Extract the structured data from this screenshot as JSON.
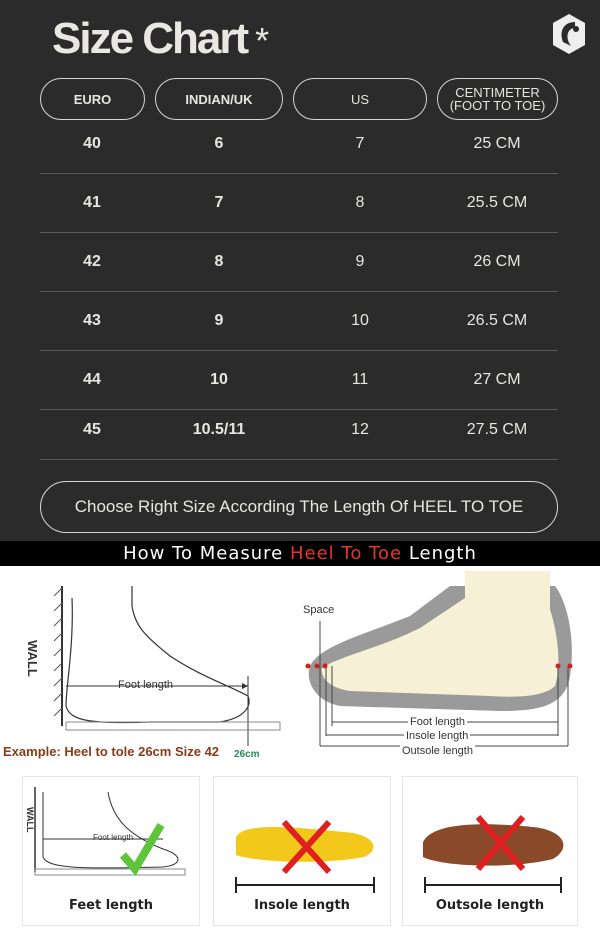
{
  "header": {
    "title": "Size Chart",
    "asterisk": "*",
    "logo_icon": "brand-logo-icon"
  },
  "columns": [
    "EURO",
    "INDIAN/UK",
    "US",
    "CENTIMETER\n(FOOT TO TOE)"
  ],
  "columns_split": {
    "cm_line1": "CENTIMETER",
    "cm_line2": "(FOOT TO TOE)"
  },
  "rows": [
    [
      "40",
      "6",
      "7",
      "25 CM"
    ],
    [
      "41",
      "7",
      "8",
      "25.5 CM"
    ],
    [
      "42",
      "8",
      "9",
      "26 CM"
    ],
    [
      "43",
      "9",
      "10",
      "26.5 CM"
    ],
    [
      "44",
      "10",
      "11",
      "27 CM"
    ],
    [
      "45",
      "10.5/11",
      "12",
      "27.5 CM"
    ]
  ],
  "cta": "Choose Right Size According The Length Of HEEL TO TOE",
  "banner": {
    "part1": "How To Measure ",
    "highlight": "Heel To Toe",
    "part2": " Length",
    "highlight_color": "#e8352b"
  },
  "diagram": {
    "wall": "WALL",
    "foot_length": "Foot length",
    "example": "Example: Heel to tole 26cm Size 42",
    "measure": "26cm",
    "space": "Space",
    "insole_length": "Insole length",
    "outsole_length": "Outsole length"
  },
  "cards": [
    {
      "label": "Feet length",
      "mark": "check"
    },
    {
      "label": "Insole length",
      "mark": "cross"
    },
    {
      "label": "Outsole length",
      "mark": "cross"
    }
  ],
  "colors": {
    "background": "#2b2b2b",
    "text": "#e8e6e1",
    "check": "#5cc53a",
    "cross": "#e02020"
  }
}
